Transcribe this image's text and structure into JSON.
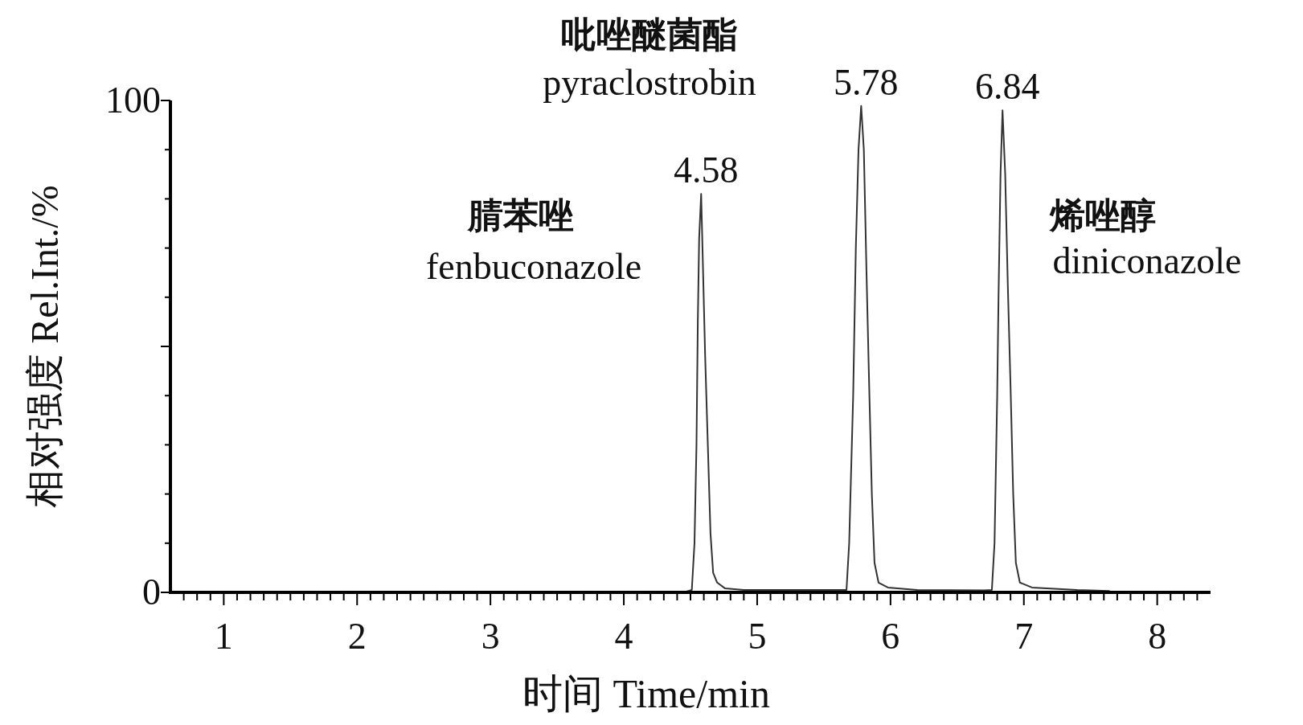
{
  "chart_data": {
    "type": "line",
    "xlabel": "时间 Time/min",
    "ylabel": "相对强度 Rel.Int./%",
    "xlim": [
      0.6,
      8.4
    ],
    "ylim": [
      0,
      100
    ],
    "xticks": [
      {
        "value": 0.7,
        "label": null
      },
      {
        "value": 0.8,
        "label": null
      },
      {
        "value": 0.9,
        "label": null
      },
      1,
      {
        "value": 1.1,
        "label": null
      },
      {
        "value": 1.2,
        "label": null
      },
      {
        "value": 1.3,
        "label": null
      },
      {
        "value": 1.4,
        "label": null
      },
      {
        "value": 1.5,
        "label": null
      },
      {
        "value": 1.6,
        "label": null
      },
      {
        "value": 1.7,
        "label": null
      },
      {
        "value": 1.8,
        "label": null
      },
      {
        "value": 1.9,
        "label": null
      },
      2,
      {
        "value": 2.1,
        "label": null
      },
      {
        "value": 2.2,
        "label": null
      },
      {
        "value": 2.3,
        "label": null
      },
      {
        "value": 2.4,
        "label": null
      },
      {
        "value": 2.5,
        "label": null
      },
      {
        "value": 2.6,
        "label": null
      },
      {
        "value": 2.7,
        "label": null
      },
      {
        "value": 2.8,
        "label": null
      },
      {
        "value": 2.9,
        "label": null
      },
      3,
      {
        "value": 3.1,
        "label": null
      },
      {
        "value": 3.2,
        "label": null
      },
      {
        "value": 3.3,
        "label": null
      },
      {
        "value": 3.4,
        "label": null
      },
      {
        "value": 3.5,
        "label": null
      },
      {
        "value": 3.6,
        "label": null
      },
      {
        "value": 3.7,
        "label": null
      },
      {
        "value": 3.8,
        "label": null
      },
      {
        "value": 3.9,
        "label": null
      },
      4,
      {
        "value": 4.1,
        "label": null
      },
      {
        "value": 4.2,
        "label": null
      },
      {
        "value": 4.3,
        "label": null
      },
      {
        "value": 4.4,
        "label": null
      },
      {
        "value": 4.5,
        "label": null
      },
      {
        "value": 4.6,
        "label": null
      },
      {
        "value": 4.7,
        "label": null
      },
      {
        "value": 4.8,
        "label": null
      },
      {
        "value": 4.9,
        "label": null
      },
      5,
      {
        "value": 5.1,
        "label": null
      },
      {
        "value": 5.2,
        "label": null
      },
      {
        "value": 5.3,
        "label": null
      },
      {
        "value": 5.4,
        "label": null
      },
      {
        "value": 5.5,
        "label": null
      },
      {
        "value": 5.6,
        "label": null
      },
      {
        "value": 5.7,
        "label": null
      },
      {
        "value": 5.8,
        "label": null
      },
      {
        "value": 5.9,
        "label": null
      },
      6,
      {
        "value": 6.1,
        "label": null
      },
      {
        "value": 6.2,
        "label": null
      },
      {
        "value": 6.3,
        "label": null
      },
      {
        "value": 6.4,
        "label": null
      },
      {
        "value": 6.5,
        "label": null
      },
      {
        "value": 6.6,
        "label": null
      },
      {
        "value": 6.7,
        "label": null
      },
      {
        "value": 6.8,
        "label": null
      },
      {
        "value": 6.9,
        "label": null
      },
      7,
      {
        "value": 7.1,
        "label": null
      },
      {
        "value": 7.2,
        "label": null
      },
      {
        "value": 7.3,
        "label": null
      },
      {
        "value": 7.4,
        "label": null
      },
      {
        "value": 7.5,
        "label": null
      },
      {
        "value": 7.6,
        "label": null
      },
      {
        "value": 7.7,
        "label": null
      },
      {
        "value": 7.8,
        "label": null
      },
      {
        "value": 7.9,
        "label": null
      },
      8,
      {
        "value": 8.1,
        "label": null
      },
      {
        "value": 8.2,
        "label": null
      },
      {
        "value": 8.3,
        "label": null
      }
    ],
    "yticks": [
      0,
      {
        "value": 10,
        "label": null
      },
      {
        "value": 20,
        "label": null
      },
      {
        "value": 30,
        "label": null
      },
      {
        "value": 40,
        "label": null
      },
      {
        "value": 50,
        "label": null
      },
      {
        "value": 60,
        "label": null
      },
      {
        "value": 70,
        "label": null
      },
      {
        "value": 80,
        "label": null
      },
      {
        "value": 90,
        "label": null
      },
      100
    ],
    "series": [
      {
        "color": "#333333",
        "x": [
          0.6,
          4.45,
          4.51,
          4.53,
          4.545,
          4.555,
          4.565,
          4.58,
          4.59,
          4.61,
          4.63,
          4.65,
          4.67,
          4.7,
          4.76,
          4.9,
          5.5,
          5.67,
          5.69,
          5.72,
          5.74,
          5.76,
          5.78,
          5.8,
          5.82,
          5.84,
          5.86,
          5.88,
          5.91,
          5.98,
          6.2,
          6.7,
          6.76,
          6.78,
          6.8,
          6.81,
          6.825,
          6.84,
          6.86,
          6.88,
          6.9,
          6.92,
          6.94,
          6.97,
          7.06,
          7.4,
          7.64
        ],
        "values": [
          0,
          0,
          0.5,
          10,
          30,
          55,
          72,
          81,
          70,
          48,
          30,
          12,
          4,
          2,
          0.8,
          0.5,
          0.5,
          0.5,
          10,
          40,
          70,
          90,
          98.9,
          90,
          65,
          42,
          20,
          6,
          2,
          1,
          0.5,
          0.4,
          0.5,
          10,
          40,
          60,
          85,
          98,
          85,
          62,
          42,
          20,
          6,
          2,
          1,
          0.5,
          0.3
        ]
      }
    ],
    "annotations": [
      {
        "text": "4.58",
        "x": 4.58,
        "y": 81
      },
      {
        "text": "5.78",
        "x": 5.78,
        "y": 98.9
      },
      {
        "text": "6.84",
        "x": 6.84,
        "y": 98
      },
      "吡唑醚菌酯",
      "pyraclostrobin",
      "腈苯唑",
      "fenbuconazole",
      "烯唑醇",
      "diniconazole"
    ]
  }
}
